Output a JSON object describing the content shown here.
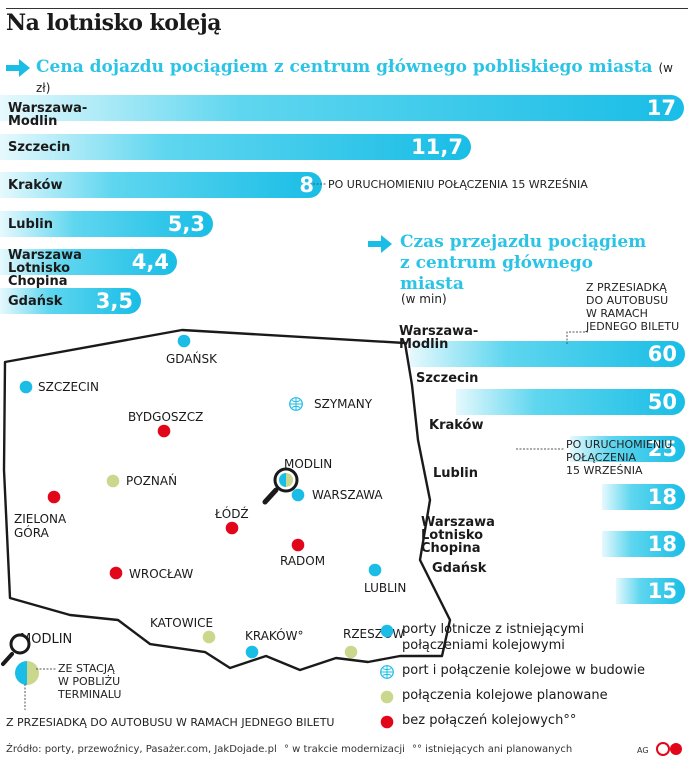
{
  "title": "Na lotnisko koleją",
  "colors": {
    "accent": "#19bde6",
    "light": "#c9d88c",
    "red": "#e2061b",
    "dark": "#1a1a1a"
  },
  "price": {
    "subtitle": "Cena dojazdu pociągiem z centrum głównego pobliskiego miasta",
    "unit": "(w zł)",
    "krakow_note": "PO URUCHOMIENIU POŁĄCZENIA 15 WRZEŚNIA"
  },
  "time": {
    "subtitle_1": "Czas przejazdu pociągiem",
    "subtitle_2": "z centrum głównego",
    "subtitle_3": "miasta",
    "unit": "(w min)",
    "modlin_note_1": "Z PRZESIADKĄ",
    "modlin_note_2": "DO AUTOBUSU",
    "modlin_note_3": "W RAMACH",
    "modlin_note_4": "JEDNEGO BILETU",
    "krakow_note_1": "PO URUCHOMIENIU",
    "krakow_note_2": "POŁĄCZENIA",
    "krakow_note_3": "15 WRZEŚNIA"
  },
  "chart_data": [
    {
      "type": "bar",
      "title": "Cena dojazdu pociągiem z centrum głównego pobliskiego miasta",
      "ylabel": "(w zł)",
      "categories": [
        "Warszawa-Modlin",
        "Szczecin",
        "Kraków",
        "Lublin",
        "Warszawa Lotnisko Chopina",
        "Gdańsk"
      ],
      "values": [
        17,
        11.7,
        8,
        5.3,
        4.4,
        3.5
      ],
      "value_labels": [
        "17",
        "11,7",
        "8",
        "5,3",
        "4,4",
        "3,5"
      ],
      "label_lines": [
        [
          "Warszawa-Modlin"
        ],
        [
          "Szczecin"
        ],
        [
          "Kraków"
        ],
        [
          "Lublin"
        ],
        [
          "Warszawa",
          "Lotnisko Chopina"
        ],
        [
          "Gdańsk"
        ]
      ]
    },
    {
      "type": "bar",
      "title": "Czas przejazdu pociągiem z centrum głównego miasta",
      "ylabel": "(w min)",
      "categories": [
        "Warszawa-Modlin",
        "Szczecin",
        "Kraków",
        "Lublin",
        "Warszawa Lotnisko Chopina",
        "Gdańsk"
      ],
      "values": [
        60,
        50,
        25,
        18,
        18,
        15
      ],
      "value_labels": [
        "60",
        "50",
        "25",
        "18",
        "18",
        "15"
      ]
    }
  ],
  "map": {
    "cities": [
      {
        "name": "GDAŃSK",
        "type": "existing"
      },
      {
        "name": "SZCZECIN",
        "type": "existing"
      },
      {
        "name": "SZYMANY",
        "type": "construction"
      },
      {
        "name": "BYDGOSZCZ",
        "type": "none"
      },
      {
        "name": "MODLIN",
        "type": "split"
      },
      {
        "name": "POZNAŃ",
        "type": "planned"
      },
      {
        "name": "WARSZAWA",
        "type": "existing"
      },
      {
        "name": "ZIELONA GÓRA",
        "type": "none"
      },
      {
        "name": "ŁÓDŹ",
        "type": "none"
      },
      {
        "name": "RADOM",
        "type": "none"
      },
      {
        "name": "WROCŁAW",
        "type": "none"
      },
      {
        "name": "LUBLIN",
        "type": "existing"
      },
      {
        "name": "KATOWICE",
        "type": "planned"
      },
      {
        "name": "KRAKÓW°",
        "type": "existing"
      },
      {
        "name": "RZESZÓW",
        "type": "planned"
      }
    ],
    "inset_title": "MODLIN",
    "inset_note_1": "ZE STACJĄ",
    "inset_note_2": "W POBLIŻU",
    "inset_note_3": "TERMINALU",
    "inset_bottom": "Z PRZESIADKĄ DO AUTOBUSU W RAMACH JEDNEGO BILETU"
  },
  "legend": [
    {
      "lines": [
        "porty lotnicze z istniejącymi",
        "połączeniami kolejowymi"
      ],
      "type": "existing"
    },
    {
      "lines": [
        "port i połączenie kolejowe w budowie"
      ],
      "type": "construction"
    },
    {
      "lines": [
        "połączenia kolejowe planowane"
      ],
      "type": "planned"
    },
    {
      "lines": [
        "bez połączeń kolejowych°°"
      ],
      "type": "none"
    }
  ],
  "footer": {
    "source": "Źródło: porty, przewoźnicy, Pasażer.com, JakDojade.pl",
    "note1": "° w trakcie modernizacji",
    "note2": "°° istniejących ani planowanych",
    "ag": "AG"
  }
}
